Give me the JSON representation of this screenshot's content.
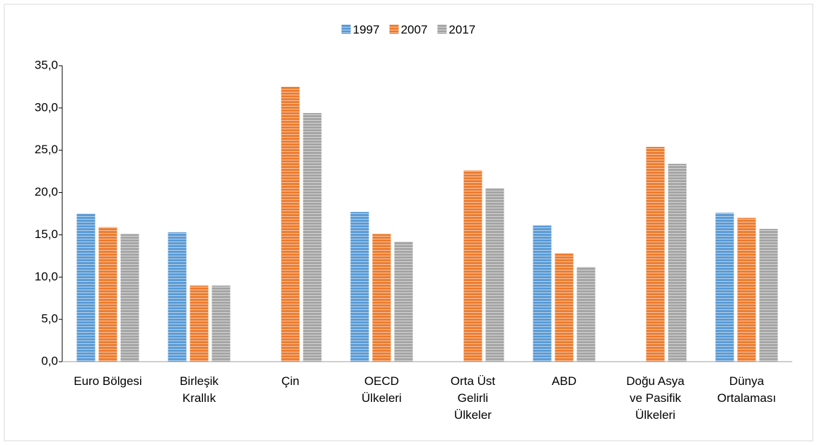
{
  "chart_data": {
    "type": "bar",
    "categories": [
      "Euro Bölgesi",
      "Birleşik\nKrallık",
      "Çin",
      "OECD\nÜlkeleri",
      "Orta Üst\nGelirli\nÜlkeler",
      "ABD",
      "Doğu Asya\nve Pasifik\nÜlkeleri",
      "Dünya\nOrtalaması"
    ],
    "series": [
      {
        "name": "1997",
        "color": "#5b9bd5",
        "values": [
          17.5,
          15.3,
          null,
          17.7,
          null,
          16.1,
          null,
          17.6
        ]
      },
      {
        "name": "2007",
        "color": "#ed7d31",
        "values": [
          15.9,
          9.0,
          32.5,
          15.1,
          22.6,
          12.8,
          25.4,
          17.0
        ]
      },
      {
        "name": "2017",
        "color": "#a5a5a5",
        "values": [
          15.1,
          9.0,
          29.4,
          14.2,
          20.5,
          11.2,
          23.4,
          15.7
        ]
      }
    ],
    "ylim": [
      0,
      35
    ],
    "yticks": [
      {
        "value": 0,
        "label": "0,0"
      },
      {
        "value": 5,
        "label": "5,0"
      },
      {
        "value": 10,
        "label": "10,0"
      },
      {
        "value": 15,
        "label": "15,0"
      },
      {
        "value": 20,
        "label": "20,0"
      },
      {
        "value": 25,
        "label": "25,0"
      },
      {
        "value": 30,
        "label": "30,0"
      },
      {
        "value": 35,
        "label": "35,0"
      }
    ],
    "legend": "top"
  }
}
